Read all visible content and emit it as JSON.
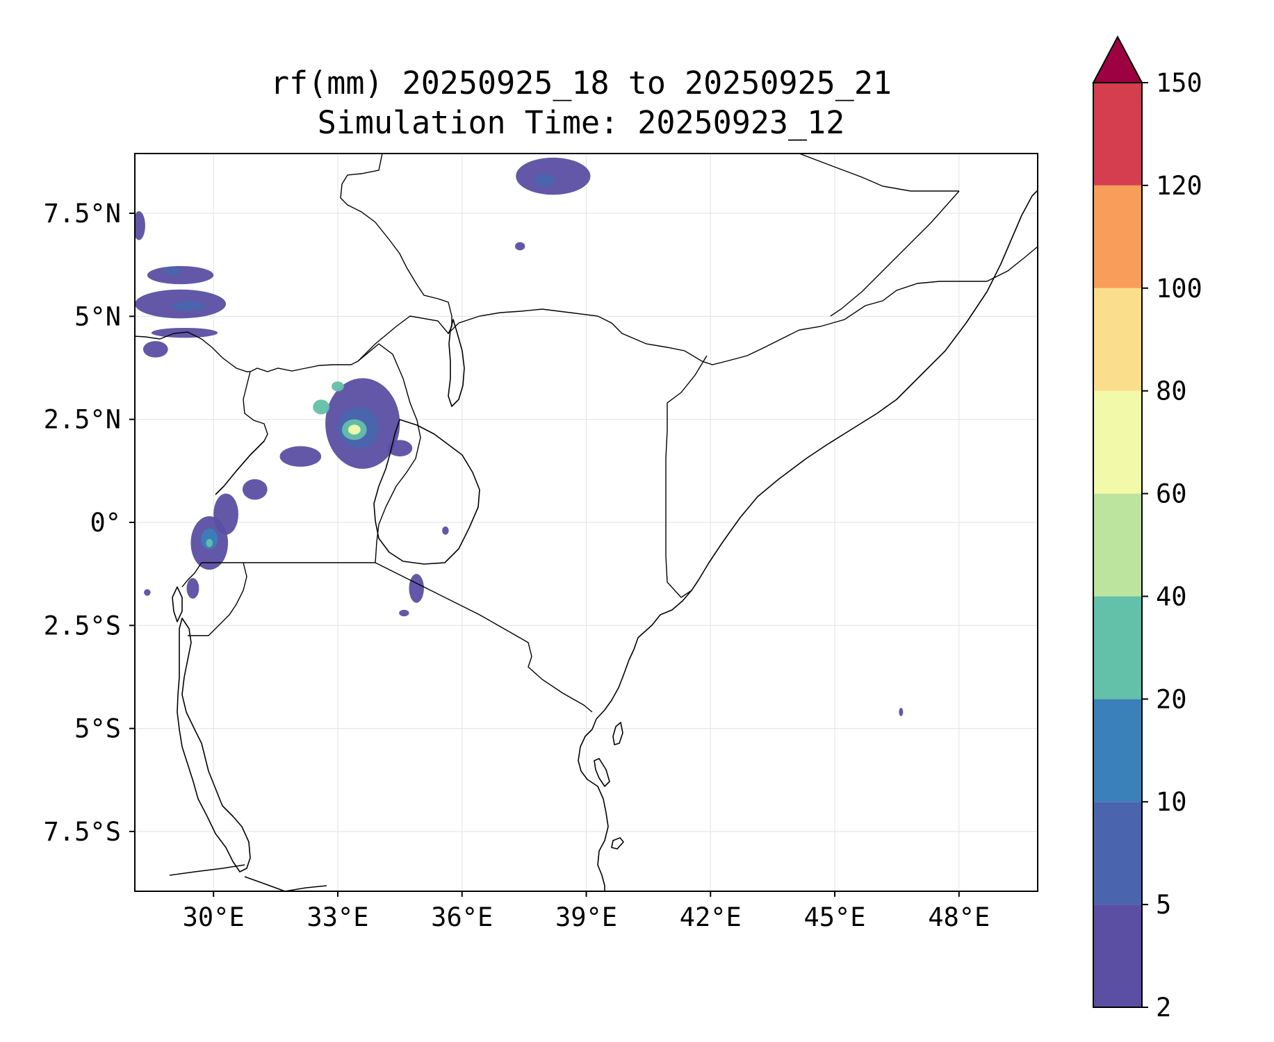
{
  "title_line1": "rf(mm) 20250925_18 to 20250925_21",
  "title_line2": "Simulation Time: 20250923_12",
  "map": {
    "lon_range": [
      28.1,
      49.9
    ],
    "lat_range": [
      -8.95,
      8.95
    ],
    "lon_ticks": [
      {
        "value": 30,
        "label": "30°E"
      },
      {
        "value": 33,
        "label": "33°E"
      },
      {
        "value": 36,
        "label": "36°E"
      },
      {
        "value": 39,
        "label": "39°E"
      },
      {
        "value": 42,
        "label": "42°E"
      },
      {
        "value": 45,
        "label": "45°E"
      },
      {
        "value": 48,
        "label": "48°E"
      }
    ],
    "lat_ticks": [
      {
        "value": 7.5,
        "label": "7.5°N"
      },
      {
        "value": 5,
        "label": "5°N"
      },
      {
        "value": 2.5,
        "label": "2.5°N"
      },
      {
        "value": 0,
        "label": "0°"
      },
      {
        "value": -2.5,
        "label": "2.5°S"
      },
      {
        "value": -5,
        "label": "5°S"
      },
      {
        "value": -7.5,
        "label": "7.5°S"
      }
    ],
    "gridlines": true
  },
  "colorbar": {
    "levels": [
      {
        "label": "2",
        "color": "#5a4fa2"
      },
      {
        "label": "5",
        "color": "#4a65ae"
      },
      {
        "label": "10",
        "color": "#3a80b9"
      },
      {
        "label": "20",
        "color": "#63c0a9"
      },
      {
        "label": "40",
        "color": "#bde49f"
      },
      {
        "label": "60",
        "color": "#f2faaa"
      },
      {
        "label": "80",
        "color": "#fbde8c"
      },
      {
        "label": "100",
        "color": "#f99e5a"
      },
      {
        "label": "120",
        "color": "#d53e4f"
      },
      {
        "label": "150",
        "color": ""
      }
    ],
    "extend_color": "#9e0142"
  },
  "rain_cells": [
    {
      "lon": 33.6,
      "lat": 2.4,
      "rx": 0.9,
      "ry": 1.1,
      "level": 0
    },
    {
      "lon": 33.5,
      "lat": 2.3,
      "rx": 0.5,
      "ry": 0.5,
      "level": 1
    },
    {
      "lon": 33.4,
      "lat": 2.25,
      "rx": 0.3,
      "ry": 0.25,
      "level": 3
    },
    {
      "lon": 33.4,
      "lat": 2.25,
      "rx": 0.15,
      "ry": 0.12,
      "level": 5
    },
    {
      "lon": 33.0,
      "lat": 3.3,
      "rx": 0.15,
      "ry": 0.12,
      "level": 3
    },
    {
      "lon": 32.6,
      "lat": 2.8,
      "rx": 0.2,
      "ry": 0.18,
      "level": 3
    },
    {
      "lon": 32.1,
      "lat": 1.6,
      "rx": 0.5,
      "ry": 0.25,
      "level": 0
    },
    {
      "lon": 34.5,
      "lat": 1.8,
      "rx": 0.3,
      "ry": 0.2,
      "level": 0
    },
    {
      "lon": 29.9,
      "lat": -0.5,
      "rx": 0.45,
      "ry": 0.65,
      "level": 0
    },
    {
      "lon": 29.9,
      "lat": -0.4,
      "rx": 0.2,
      "ry": 0.25,
      "level": 2
    },
    {
      "lon": 29.9,
      "lat": -0.5,
      "rx": 0.08,
      "ry": 0.1,
      "level": 3
    },
    {
      "lon": 30.3,
      "lat": 0.2,
      "rx": 0.3,
      "ry": 0.5,
      "level": 0
    },
    {
      "lon": 29.5,
      "lat": -1.6,
      "rx": 0.15,
      "ry": 0.25,
      "level": 0
    },
    {
      "lon": 31.0,
      "lat": 0.8,
      "rx": 0.3,
      "ry": 0.25,
      "level": 0
    },
    {
      "lon": 34.9,
      "lat": -1.6,
      "rx": 0.18,
      "ry": 0.35,
      "level": 0
    },
    {
      "lon": 34.6,
      "lat": -2.2,
      "rx": 0.12,
      "ry": 0.08,
      "level": 0
    },
    {
      "lon": 35.6,
      "lat": -0.2,
      "rx": 0.08,
      "ry": 0.1,
      "level": 0
    },
    {
      "lon": 29.2,
      "lat": 5.3,
      "rx": 1.1,
      "ry": 0.35,
      "level": 0
    },
    {
      "lon": 29.4,
      "lat": 5.25,
      "rx": 0.4,
      "ry": 0.12,
      "level": 1
    },
    {
      "lon": 29.2,
      "lat": 6.0,
      "rx": 0.8,
      "ry": 0.22,
      "level": 0
    },
    {
      "lon": 29.0,
      "lat": 6.1,
      "rx": 0.2,
      "ry": 0.1,
      "level": 1
    },
    {
      "lon": 28.6,
      "lat": 4.2,
      "rx": 0.3,
      "ry": 0.2,
      "level": 0
    },
    {
      "lon": 29.3,
      "lat": 4.6,
      "rx": 0.8,
      "ry": 0.12,
      "level": 0
    },
    {
      "lon": 28.2,
      "lat": 7.2,
      "rx": 0.15,
      "ry": 0.35,
      "level": 0
    },
    {
      "lon": 38.2,
      "lat": 8.4,
      "rx": 0.9,
      "ry": 0.45,
      "level": 0
    },
    {
      "lon": 38.0,
      "lat": 8.3,
      "rx": 0.25,
      "ry": 0.15,
      "level": 1
    },
    {
      "lon": 37.4,
      "lat": 6.7,
      "rx": 0.12,
      "ry": 0.1,
      "level": 0
    },
    {
      "lon": 28.4,
      "lat": -1.7,
      "rx": 0.08,
      "ry": 0.08,
      "level": 0
    },
    {
      "lon": 46.6,
      "lat": -4.6,
      "rx": 0.05,
      "ry": 0.1,
      "level": 0
    }
  ]
}
